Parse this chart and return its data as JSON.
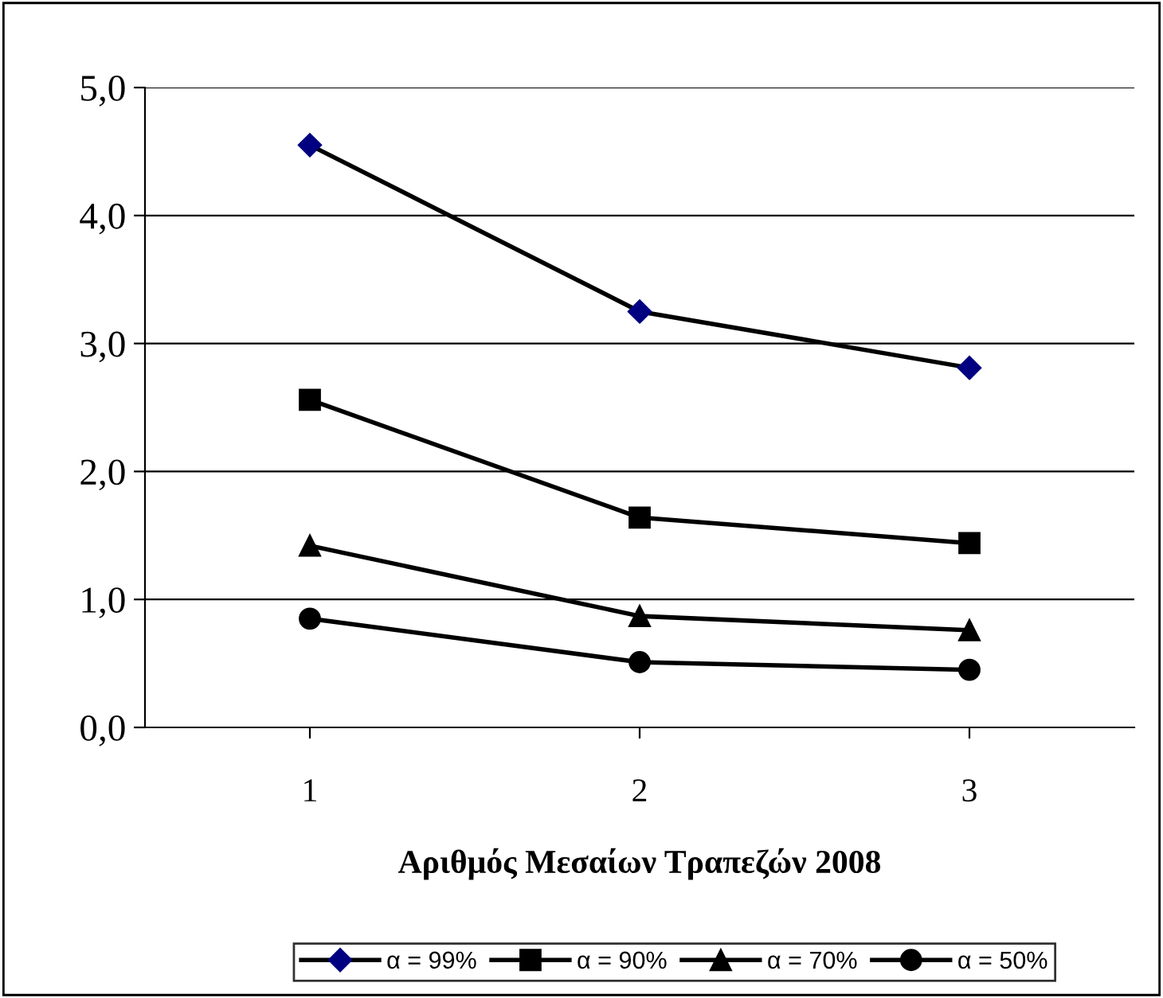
{
  "chart_data": {
    "type": "line",
    "xlabel": "Αριθμός Μεσαίων Τραπεζών 2008",
    "categories": [
      "1",
      "2",
      "3"
    ],
    "series": [
      {
        "name": "α = 99%",
        "color": "#000080",
        "marker": "diamond",
        "values": [
          4.55,
          3.25,
          2.81
        ]
      },
      {
        "name": "α = 90%",
        "color": "#000000",
        "marker": "square",
        "values": [
          2.56,
          1.64,
          1.44
        ]
      },
      {
        "name": "α = 70%",
        "color": "#000000",
        "marker": "triangle",
        "values": [
          1.42,
          0.87,
          0.76
        ]
      },
      {
        "name": "α = 50%",
        "color": "#000000",
        "marker": "circle",
        "values": [
          0.85,
          0.51,
          0.45
        ]
      }
    ],
    "ylim": [
      0,
      5
    ],
    "yticks": [
      {
        "value": 0,
        "label": "0,0"
      },
      {
        "value": 1,
        "label": "1,0"
      },
      {
        "value": 2,
        "label": "2,0"
      },
      {
        "value": 3,
        "label": "3,0"
      },
      {
        "value": 4,
        "label": "4,0"
      },
      {
        "value": 5,
        "label": "5,0"
      }
    ],
    "grid": "y",
    "legend": "bottom",
    "line_style": "solid"
  }
}
